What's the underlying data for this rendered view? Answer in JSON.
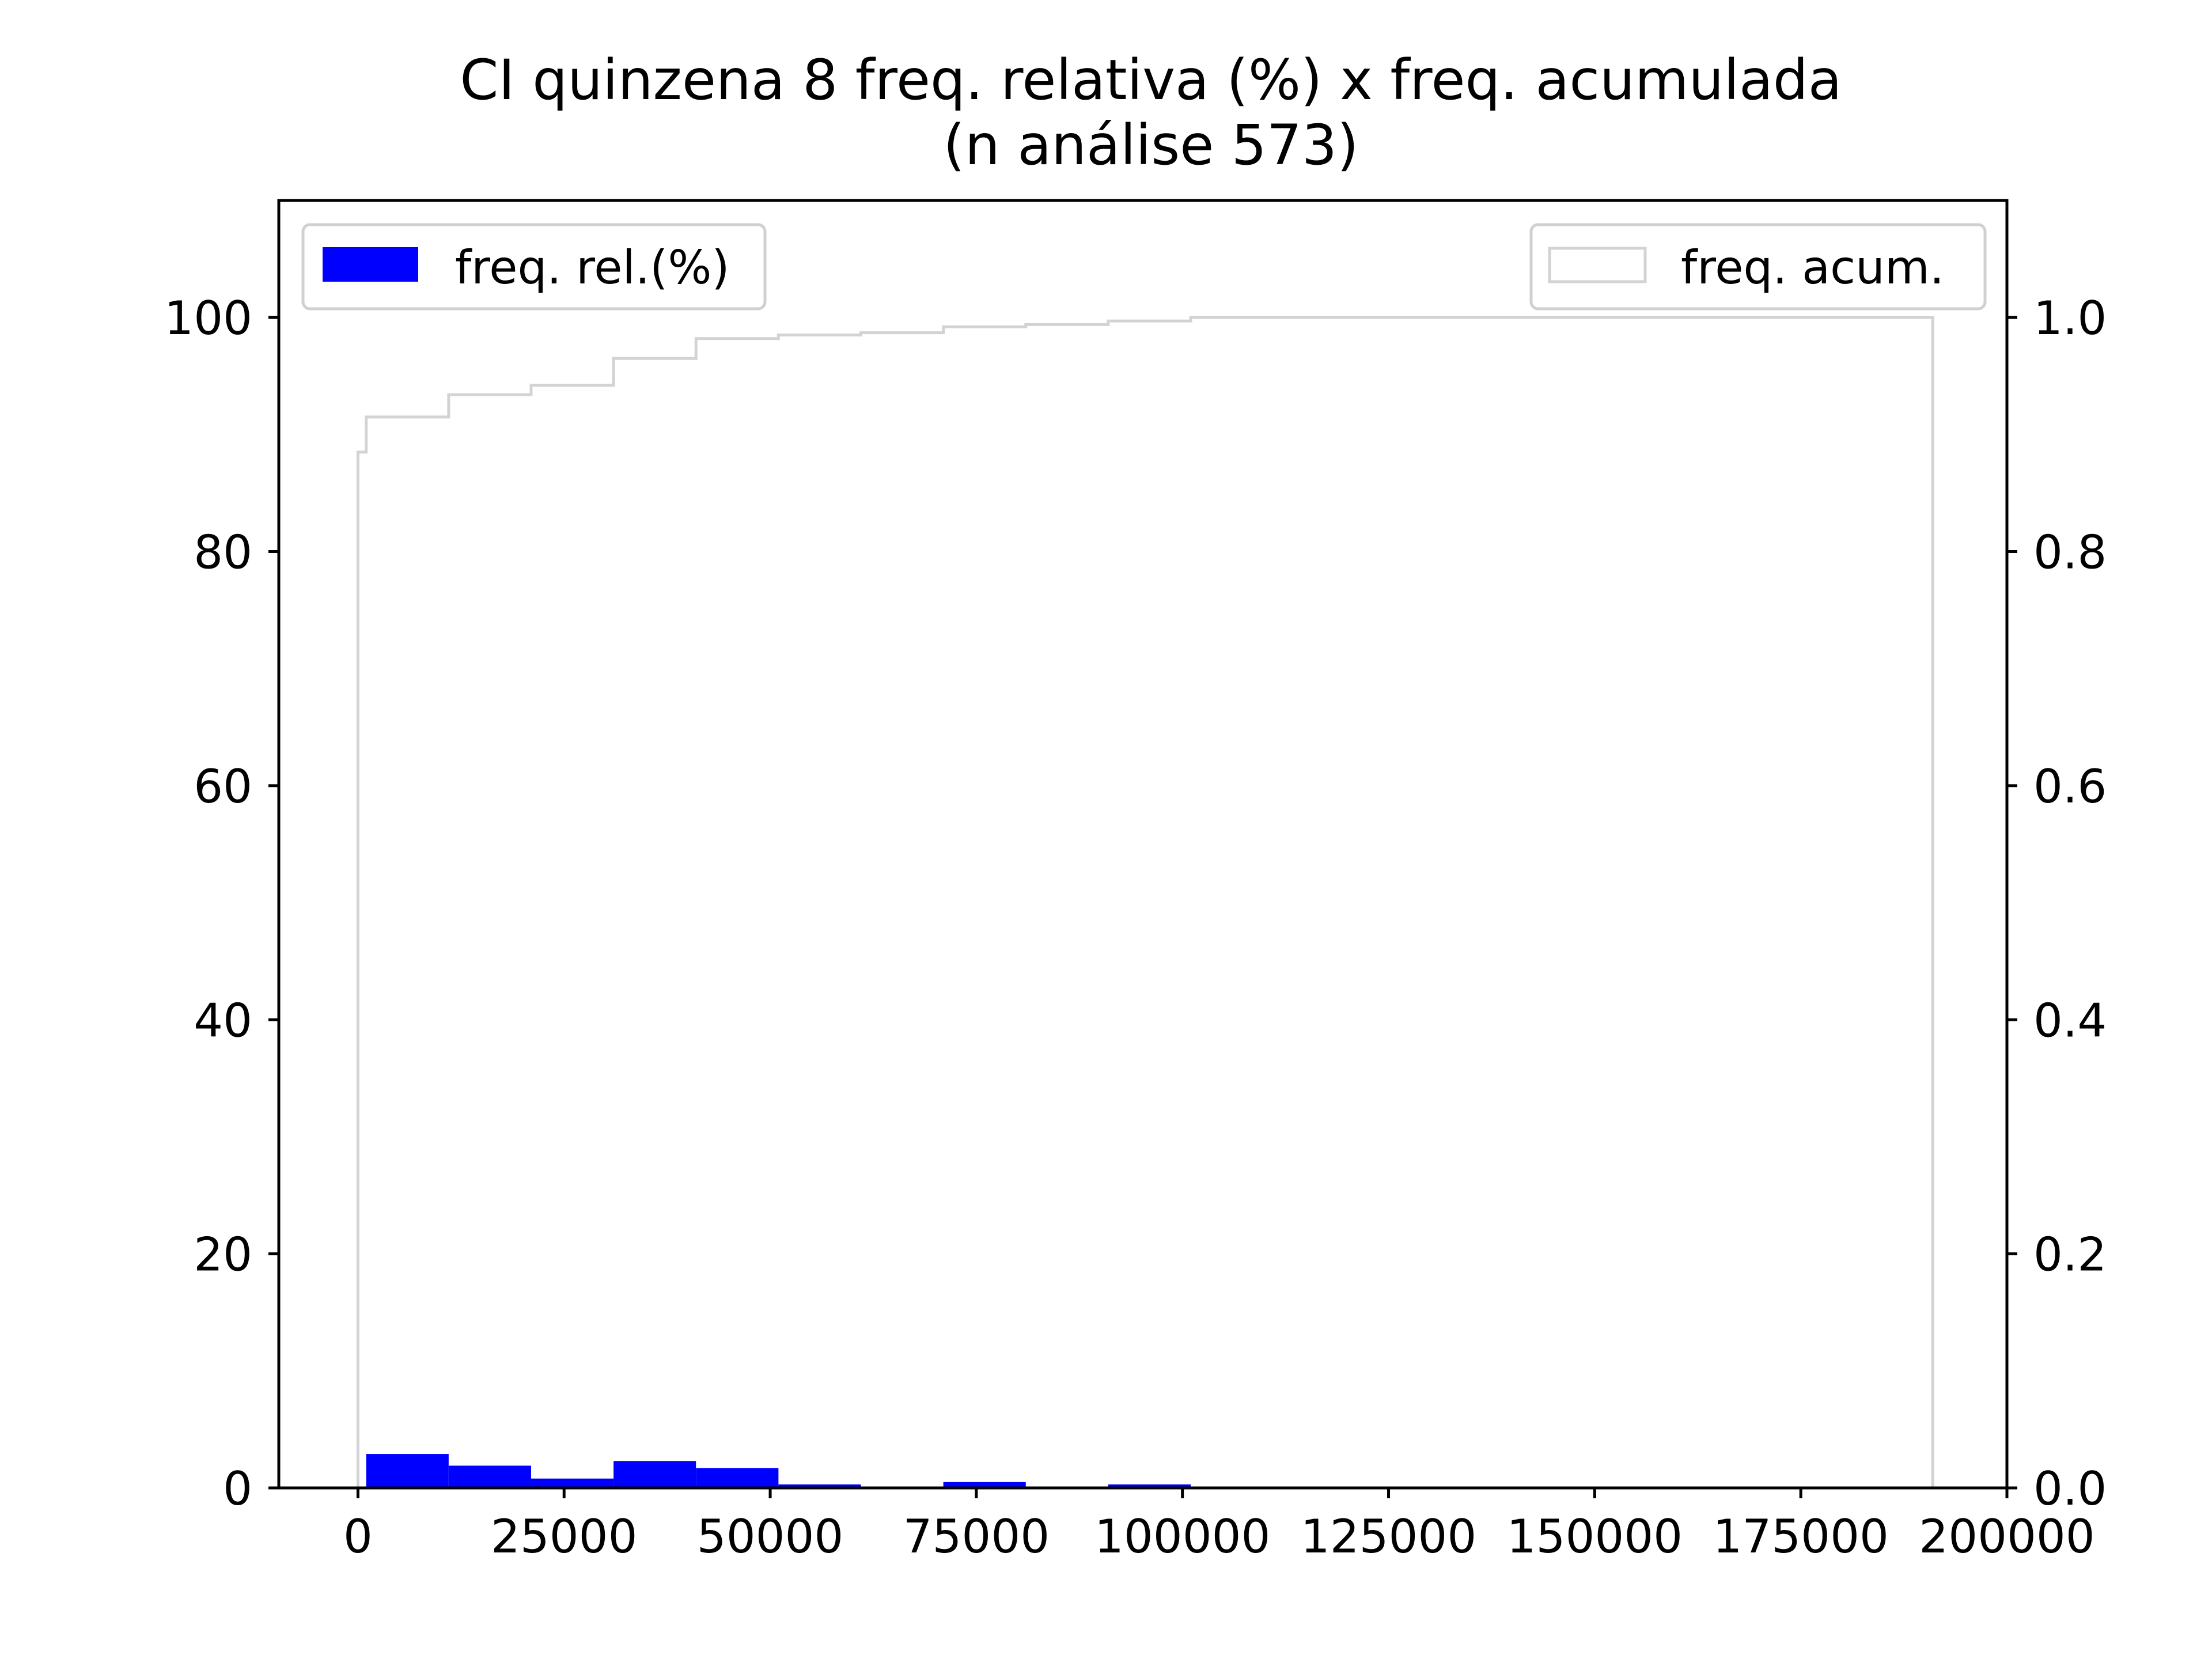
{
  "chart_data": {
    "type": "bar",
    "title_line1": "CI quinzena 8 freq. relativa (%) x freq. acumulada",
    "title_line2": "(n análise 573)",
    "xlabel": "",
    "ylabel": "",
    "xlim": [
      -9600,
      200000
    ],
    "ylim": [
      0,
      110
    ],
    "y2lim": [
      0,
      1.1
    ],
    "grid": false,
    "x_ticks": [
      {
        "value": 0,
        "label": "0"
      },
      {
        "value": 25000,
        "label": "25000"
      },
      {
        "value": 50000,
        "label": "50000"
      },
      {
        "value": 75000,
        "label": "75000"
      },
      {
        "value": 100000,
        "label": "100000"
      },
      {
        "value": 125000,
        "label": "125000"
      },
      {
        "value": 150000,
        "label": "150000"
      },
      {
        "value": 175000,
        "label": "175000"
      },
      {
        "value": 200000,
        "label": "200000"
      }
    ],
    "y_ticks": [
      {
        "value": 0,
        "label": "0"
      },
      {
        "value": 20,
        "label": "20"
      },
      {
        "value": 40,
        "label": "40"
      },
      {
        "value": 60,
        "label": "60"
      },
      {
        "value": 80,
        "label": "80"
      },
      {
        "value": 100,
        "label": "100"
      }
    ],
    "y2_ticks": [
      {
        "value": 0,
        "label": "0.0"
      },
      {
        "value": 0.2,
        "label": "0.2"
      },
      {
        "value": 0.4,
        "label": "0.4"
      },
      {
        "value": 0.6,
        "label": "0.6"
      },
      {
        "value": 0.8,
        "label": "0.8"
      },
      {
        "value": 1.0,
        "label": "1.0"
      }
    ],
    "series": [
      {
        "name": "freq. rel.(%)",
        "kind": "bar",
        "color": "#0000ff",
        "bins": [
          {
            "x0": 1000,
            "x1": 11000,
            "value": 2.9
          },
          {
            "x0": 11000,
            "x1": 21000,
            "value": 1.9
          },
          {
            "x0": 21000,
            "x1": 31000,
            "value": 0.8
          },
          {
            "x0": 31000,
            "x1": 41000,
            "value": 2.3
          },
          {
            "x0": 41000,
            "x1": 51000,
            "value": 1.7
          },
          {
            "x0": 51000,
            "x1": 61000,
            "value": 0.3
          },
          {
            "x0": 61000,
            "x1": 71000,
            "value": 0.0
          },
          {
            "x0": 71000,
            "x1": 81000,
            "value": 0.5
          },
          {
            "x0": 81000,
            "x1": 91000,
            "value": 0.0
          },
          {
            "x0": 91000,
            "x1": 101000,
            "value": 0.3
          }
        ]
      },
      {
        "name": "freq. acum.",
        "kind": "step",
        "color": "#d3d3d3",
        "x": [
          0,
          1000,
          11000,
          21000,
          31000,
          41000,
          51000,
          61000,
          71000,
          81000,
          91000,
          101000,
          191000
        ],
        "y": [
          0.885,
          0.915,
          0.934,
          0.942,
          0.965,
          0.982,
          0.985,
          0.987,
          0.992,
          0.994,
          0.997,
          1.0,
          1.0
        ]
      }
    ],
    "legends": [
      {
        "series": "freq. rel.(%)",
        "placement": "upper left"
      },
      {
        "series": "freq. acum.",
        "placement": "upper right"
      }
    ]
  }
}
